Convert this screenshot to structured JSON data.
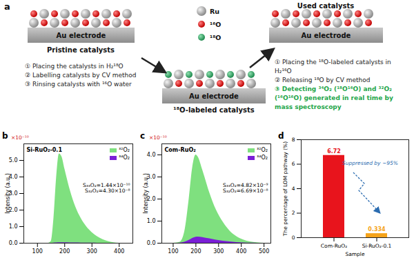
{
  "diagram": {
    "panel_label": "a",
    "electrode_label": "Au electrode",
    "legend": [
      "Ru",
      "¹⁶O",
      "¹⁸O"
    ],
    "nodes": [
      "Pristine catalysts",
      "¹⁸O-labeled catalysts",
      "Used catalysts"
    ],
    "steps_labeling": [
      "① Placing the catalysts in H₂¹⁸O",
      "② Labelling catalysts by CV method",
      "③ Rinsing catalysts with ¹⁶O water"
    ],
    "steps_detection": [
      "① Placing the ¹⁸O-labeled catalysts in H₂¹⁶O",
      "② Releasing ¹⁸O by CV method",
      "③ Detecting ³⁴O₂ (¹⁸O¹⁶O) and ³²O₂ (¹⁶O¹⁶O) generated in real time by mass spectroscopy"
    ]
  },
  "chart_data": [
    {
      "type": "area",
      "panel_label": "b",
      "sample_label": "Si-RuO₂-0.1",
      "y_multiplier": "×10⁻¹⁰",
      "ylabel": "Intensity (a.u.)",
      "xlim": [
        50,
        450
      ],
      "xticks": [
        100,
        200,
        300,
        400
      ],
      "ylim": [
        0,
        6
      ],
      "yticks": [
        0,
        1,
        2,
        3,
        4,
        5
      ],
      "legend": "top-right",
      "x": [
        100,
        140,
        150,
        160,
        170,
        180,
        190,
        200,
        220,
        240,
        260,
        280,
        300,
        320,
        340,
        360,
        380,
        400
      ],
      "series": [
        {
          "name": "³²O₂",
          "color": "#7fe07f",
          "values": [
            0,
            0,
            0.1,
            1.5,
            4.0,
            5.4,
            5.2,
            4.5,
            3.2,
            2.2,
            1.5,
            1.0,
            0.65,
            0.4,
            0.22,
            0.1,
            0.03,
            0
          ]
        },
        {
          "name": "³⁴O₂",
          "color": "#7a1fd6",
          "values": [
            0,
            0,
            0,
            0.01,
            0.02,
            0.03,
            0.03,
            0.03,
            0.02,
            0.02,
            0.01,
            0.01,
            0.01,
            0,
            0,
            0,
            0,
            0
          ]
        }
      ],
      "annotations": [
        "S₃₄O₂=1.44×10⁻¹⁰",
        "S₃₂O₂=4.30×10⁻⁸"
      ]
    },
    {
      "type": "area",
      "panel_label": "c",
      "sample_label": "Com-RuO₂",
      "y_multiplier": "×10⁻¹⁰",
      "ylabel": "Intensity (a.u.)",
      "xlim": [
        50,
        530
      ],
      "xticks": [
        100,
        200,
        300,
        400,
        500
      ],
      "ylim": [
        0,
        4.5
      ],
      "yticks": [
        0,
        1,
        2,
        3,
        4
      ],
      "legend": "top-right",
      "x": [
        100,
        130,
        150,
        170,
        185,
        200,
        210,
        230,
        260,
        290,
        320,
        350,
        380,
        410,
        440,
        470,
        500
      ],
      "series": [
        {
          "name": "³²O₂",
          "color": "#7fe07f",
          "values": [
            0,
            0.05,
            0.5,
            2.0,
            3.4,
            4.0,
            3.9,
            3.3,
            2.3,
            1.5,
            0.95,
            0.55,
            0.3,
            0.15,
            0.06,
            0.02,
            0
          ]
        },
        {
          "name": "³⁴O₂",
          "color": "#7a1fd6",
          "values": [
            0,
            0.01,
            0.05,
            0.13,
            0.22,
            0.27,
            0.28,
            0.26,
            0.2,
            0.14,
            0.09,
            0.06,
            0.03,
            0.015,
            0.005,
            0,
            0
          ]
        }
      ],
      "annotations": [
        "S₃₄O₂=4.82×10⁻⁹",
        "S₃₂O₂=6.69×10⁻⁸"
      ]
    },
    {
      "type": "bar",
      "panel_label": "d",
      "ylabel": "The percentage of LOM pathway (%)",
      "xlabel": "Sample",
      "categories": [
        "Com-RuO₂",
        "Si-RuO₂-0.1"
      ],
      "values": [
        6.72,
        0.334
      ],
      "colors": [
        "#e8141c",
        "#f5a31a"
      ],
      "ylim": [
        0,
        8
      ],
      "yticks": [
        0,
        2,
        4,
        6,
        8
      ],
      "data_labels": true,
      "annotation": "Suppressed by ~95%"
    }
  ]
}
